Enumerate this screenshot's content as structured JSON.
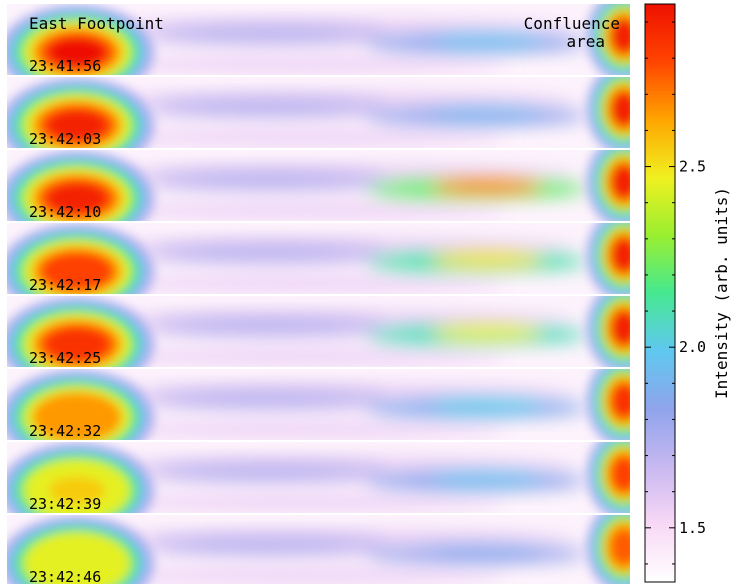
{
  "chart_data": {
    "type": "heatmap",
    "annotations": {
      "left_header": "East Footpoint",
      "right_header_line1": "Confluence",
      "right_header_line2": "area"
    },
    "panels": [
      {
        "time": "23:41:56",
        "blob_peak": 2.95,
        "band_peak": 1.95,
        "right_peak": 2.9
      },
      {
        "time": "23:42:03",
        "blob_peak": 2.9,
        "band_peak": 1.9,
        "right_peak": 2.9
      },
      {
        "time": "23:42:10",
        "blob_peak": 2.9,
        "band_peak": 2.7,
        "right_peak": 2.9
      },
      {
        "time": "23:42:17",
        "blob_peak": 2.8,
        "band_peak": 2.5,
        "right_peak": 2.9
      },
      {
        "time": "23:42:25",
        "blob_peak": 2.85,
        "band_peak": 2.45,
        "right_peak": 2.9
      },
      {
        "time": "23:42:32",
        "blob_peak": 2.65,
        "band_peak": 2.0,
        "right_peak": 2.85
      },
      {
        "time": "23:42:39",
        "blob_peak": 2.55,
        "band_peak": 1.95,
        "right_peak": 2.8
      },
      {
        "time": "23:42:46",
        "blob_peak": 2.45,
        "band_peak": 1.85,
        "right_peak": 2.75
      }
    ],
    "colorbar": {
      "label": "Intensity (arb. units)",
      "ticks": [
        1.5,
        2.0,
        2.5
      ],
      "tick_labels": [
        "1.5",
        "2.0",
        "2.5"
      ],
      "range": [
        1.35,
        2.95
      ],
      "minor_ticks": [
        1.4,
        1.6,
        1.7,
        1.8,
        1.9,
        2.1,
        2.2,
        2.3,
        2.4,
        2.6,
        2.7,
        2.8,
        2.9
      ],
      "colors": [
        "#ffffff",
        "#f8d8f6",
        "#c8b8f0",
        "#8fa4ec",
        "#5fc8f0",
        "#45e890",
        "#9aef30",
        "#f0f020",
        "#ffa500",
        "#ff4400",
        "#ee1100"
      ]
    }
  }
}
